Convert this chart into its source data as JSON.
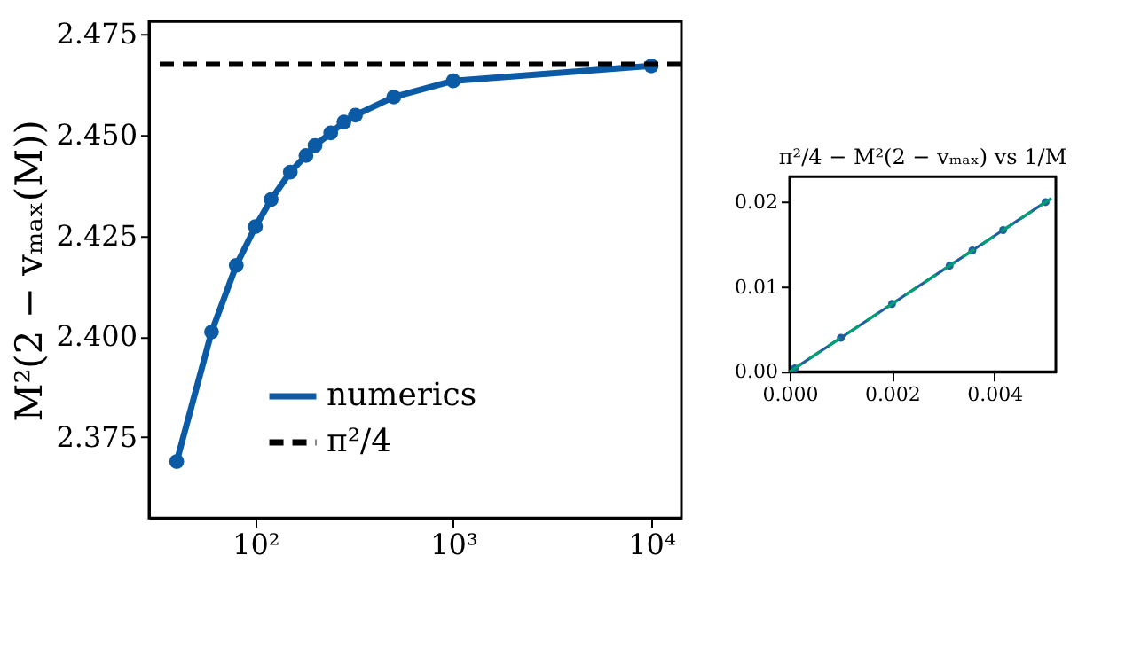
{
  "chart_data": [
    {
      "type": "line",
      "ylabel": "M²(2 − vₘₐₓ(M))",
      "log": "x",
      "marker": "circle",
      "line_style": "solid",
      "legend": "bottom left",
      "xlim": [
        29,
        14200
      ],
      "ylim": [
        2.355,
        2.478
      ],
      "xticks": [
        {
          "value": 100,
          "label": "10²"
        },
        {
          "value": 1000,
          "label": "10³"
        },
        {
          "value": 10000,
          "label": "10⁴"
        }
      ],
      "yticks": [
        {
          "value": 2.375,
          "label": "2.375"
        },
        {
          "value": 2.4,
          "label": "2.400"
        },
        {
          "value": 2.425,
          "label": "2.425"
        },
        {
          "value": 2.45,
          "label": "2.450"
        },
        {
          "value": 2.475,
          "label": "2.475"
        }
      ],
      "x": [
        40,
        60,
        80,
        100,
        120,
        150,
        180,
        200,
        240,
        280,
        320,
        500,
        1000,
        10000
      ],
      "series": [
        {
          "name": "numerics",
          "color": "#0b5aa5",
          "values": [
            2.369,
            2.4011,
            2.4176,
            2.4272,
            2.4339,
            2.4407,
            2.4448,
            2.4473,
            2.4504,
            2.4531,
            2.4548,
            2.4593,
            2.4633,
            2.467
          ]
        }
      ],
      "ref_lines": [
        {
          "axis": "y",
          "value": 2.4674,
          "label": "π²/4",
          "color": "#000000",
          "line_style": "dashed"
        }
      ]
    },
    {
      "type": "scatter",
      "title": "π²/4 − M²(2 − vₘₐₓ) vs 1/M",
      "marker": "circle",
      "xlim": [
        0,
        0.0052
      ],
      "ylim": [
        0,
        0.023
      ],
      "xticks": [
        {
          "value": 0,
          "label": "0.000"
        },
        {
          "value": 0.002,
          "label": "0.002"
        },
        {
          "value": 0.004,
          "label": "0.004"
        }
      ],
      "yticks": [
        {
          "value": 0,
          "label": "0.00"
        },
        0.01,
        0.02
      ],
      "series": [
        {
          "type": "line",
          "line_style": "solid",
          "color": "#1f5f9f",
          "x": [
            0.0001,
            0.001,
            0.002,
            0.003125,
            0.00357,
            0.00417,
            0.005
          ],
          "values": [
            0.0004,
            0.004,
            0.008,
            0.0125,
            0.0143,
            0.0167,
            0.02
          ]
        },
        {
          "type": "line",
          "marker": "none",
          "line_style": "dashed",
          "color": "#009e73",
          "x": [
            0,
            0.0052
          ],
          "values": [
            0,
            0.0208
          ]
        }
      ]
    }
  ]
}
